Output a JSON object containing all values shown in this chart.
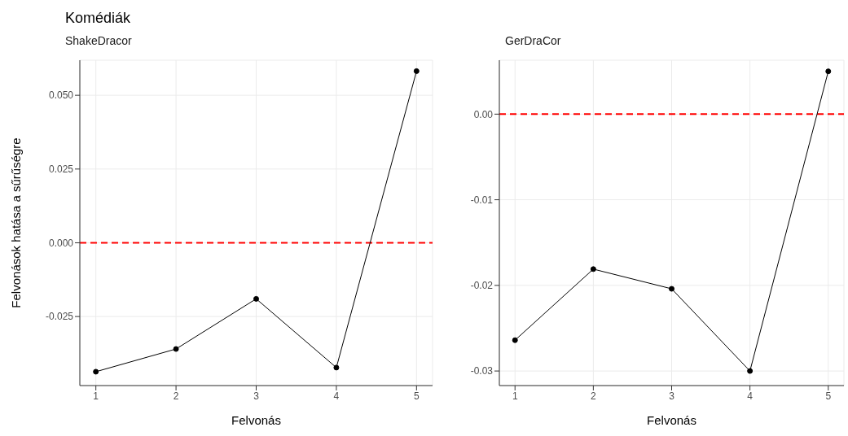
{
  "chart_data": [
    {
      "type": "line",
      "title": "Komédiák",
      "subtitle": "ShakeDracor",
      "xlabel": "Felvonás",
      "ylabel": "Felvonások hatása a sűrűségre",
      "x": [
        1,
        2,
        3,
        4,
        5
      ],
      "series": [
        {
          "color": "#000000",
          "values": [
            -0.0437,
            -0.036,
            -0.019,
            -0.0423,
            0.0582
          ]
        }
      ],
      "xlim": [
        0.8,
        5.2
      ],
      "xticks": [
        1,
        2,
        3,
        4,
        5
      ],
      "ylim": [
        -0.0484,
        0.0619
      ],
      "yticks": [
        {
          "value": -0.025,
          "label": "-0.025"
        },
        {
          "value": 0,
          "label": "0.000"
        },
        {
          "value": 0.025,
          "label": "0.025"
        },
        {
          "value": 0.05,
          "label": "0.050"
        }
      ],
      "ref_lines": [
        {
          "axis": "y",
          "value": 0,
          "color": "#ff0000",
          "line_style": "dashed"
        }
      ],
      "grid": true,
      "marker": "circle",
      "line_style": "solid"
    },
    {
      "type": "line",
      "subtitle": "GerDraCor",
      "xlabel": "Felvonás",
      "x": [
        1,
        2,
        3,
        4,
        5
      ],
      "series": [
        {
          "color": "#000000",
          "values": [
            -0.0264,
            -0.0181,
            -0.0204,
            -0.03,
            0.005
          ]
        }
      ],
      "xlim": [
        0.8,
        5.2
      ],
      "xticks": [
        1,
        2,
        3,
        4,
        5
      ],
      "ylim": [
        -0.0317,
        0.0063
      ],
      "yticks": [
        {
          "value": -0.03,
          "label": "-0.03"
        },
        {
          "value": -0.02,
          "label": "-0.02"
        },
        {
          "value": -0.01,
          "label": "-0.01"
        },
        {
          "value": 0,
          "label": "0.00"
        }
      ],
      "ref_lines": [
        {
          "axis": "y",
          "value": 0,
          "color": "#ff0000",
          "line_style": "dashed"
        }
      ],
      "grid": true,
      "marker": "circle",
      "line_style": "solid"
    }
  ]
}
